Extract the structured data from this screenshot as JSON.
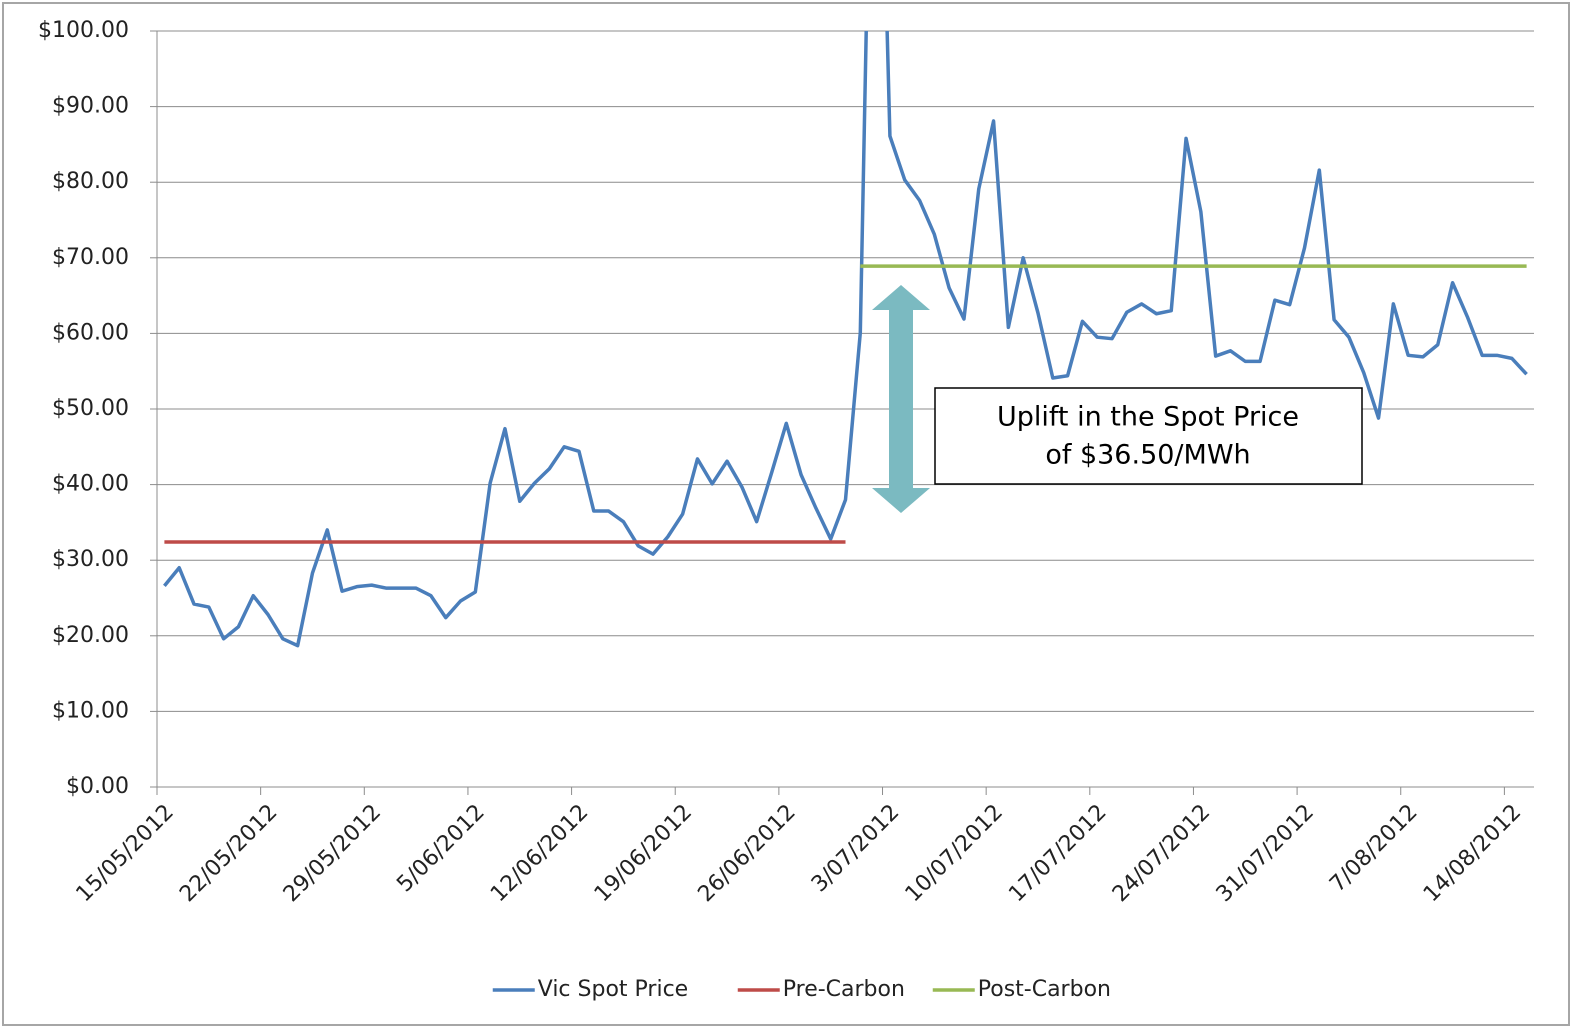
{
  "chart_data": {
    "type": "line",
    "categories": [
      "15/05/2012",
      null,
      null,
      null,
      null,
      null,
      null,
      "22/05/2012",
      null,
      null,
      null,
      null,
      null,
      null,
      "29/05/2012",
      null,
      null,
      null,
      null,
      null,
      null,
      "5/06/2012",
      null,
      null,
      null,
      null,
      null,
      null,
      "12/06/2012",
      null,
      null,
      null,
      null,
      null,
      null,
      "19/06/2012",
      null,
      null,
      null,
      null,
      null,
      null,
      "26/06/2012",
      null,
      null,
      null,
      null,
      null,
      null,
      "3/07/2012",
      null,
      null,
      null,
      null,
      null,
      null,
      "10/07/2012",
      null,
      null,
      null,
      null,
      null,
      null,
      "17/07/2012",
      null,
      null,
      null,
      null,
      null,
      null,
      "24/07/2012",
      null,
      null,
      null,
      null,
      null,
      null,
      "31/07/2012",
      null,
      null,
      null,
      null,
      null,
      null,
      "7/08/2012",
      null,
      null,
      null,
      null,
      null,
      null,
      "14/08/2012",
      null
    ],
    "series": [
      {
        "name": "Vic Spot Price",
        "color": "#4a7ebb",
        "values": [
          26.6,
          29.0,
          24.2,
          23.8,
          19.6,
          21.2,
          25.3,
          22.8,
          19.6,
          18.7,
          28.3,
          34.0,
          25.9,
          26.5,
          26.7,
          26.3,
          26.3,
          26.3,
          25.3,
          22.4,
          24.6,
          25.8,
          40.2,
          47.4,
          37.8,
          40.2,
          42.1,
          45.0,
          44.4,
          36.5,
          36.5,
          35.1,
          31.9,
          30.8,
          33.1,
          36.1,
          43.4,
          40.1,
          43.1,
          39.7,
          35.1,
          41.5,
          48.1,
          41.3,
          36.9,
          32.8,
          38.0,
          60.1,
          160,
          86.1,
          80.3,
          77.6,
          73.1,
          66.0,
          61.9,
          79.1,
          88.1,
          60.8,
          70.0,
          62.7,
          54.1,
          54.4,
          61.6,
          59.5,
          59.3,
          62.8,
          63.9,
          62.6,
          63.0,
          85.8,
          76.1,
          57.0,
          57.7,
          56.3,
          56.3,
          64.4,
          63.8,
          71.3,
          81.6,
          61.8,
          59.5,
          54.8,
          48.8,
          63.9,
          57.1,
          56.9,
          58.5,
          66.7,
          62.2,
          57.1,
          57.1,
          56.7,
          54.6
        ]
      },
      {
        "name": "Pre-Carbon",
        "color": "#be4b48",
        "values": [
          32.4,
          32.4,
          32.4,
          32.4,
          32.4,
          32.4,
          32.4,
          32.4,
          32.4,
          32.4,
          32.4,
          32.4,
          32.4,
          32.4,
          32.4,
          32.4,
          32.4,
          32.4,
          32.4,
          32.4,
          32.4,
          32.4,
          32.4,
          32.4,
          32.4,
          32.4,
          32.4,
          32.4,
          32.4,
          32.4,
          32.4,
          32.4,
          32.4,
          32.4,
          32.4,
          32.4,
          32.4,
          32.4,
          32.4,
          32.4,
          32.4,
          32.4,
          32.4,
          32.4,
          32.4,
          32.4,
          32.4,
          null,
          null,
          null,
          null,
          null,
          null,
          null,
          null,
          null,
          null,
          null,
          null,
          null,
          null,
          null,
          null,
          null,
          null,
          null,
          null,
          null,
          null,
          null,
          null,
          null,
          null,
          null,
          null,
          null,
          null,
          null,
          null,
          null,
          null,
          null,
          null,
          null,
          null,
          null,
          null,
          null,
          null,
          null,
          null,
          null,
          null
        ]
      },
      {
        "name": "Post-Carbon",
        "color": "#98b954",
        "values": [
          null,
          null,
          null,
          null,
          null,
          null,
          null,
          null,
          null,
          null,
          null,
          null,
          null,
          null,
          null,
          null,
          null,
          null,
          null,
          null,
          null,
          null,
          null,
          null,
          null,
          null,
          null,
          null,
          null,
          null,
          null,
          null,
          null,
          null,
          null,
          null,
          null,
          null,
          null,
          null,
          null,
          null,
          null,
          null,
          null,
          null,
          null,
          68.9,
          68.9,
          68.9,
          68.9,
          68.9,
          68.9,
          68.9,
          68.9,
          68.9,
          68.9,
          68.9,
          68.9,
          68.9,
          68.9,
          68.9,
          68.9,
          68.9,
          68.9,
          68.9,
          68.9,
          68.9,
          68.9,
          68.9,
          68.9,
          68.9,
          68.9,
          68.9,
          68.9,
          68.9,
          68.9,
          68.9,
          68.9,
          68.9,
          68.9,
          68.9,
          68.9,
          68.9,
          68.9,
          68.9,
          68.9,
          68.9,
          68.9,
          68.9,
          68.9,
          68.9,
          68.9
        ]
      }
    ],
    "ylim": [
      0,
      100
    ],
    "yticks": [
      {
        "value": 0,
        "label": "$0.00"
      },
      {
        "value": 10,
        "label": "$10.00"
      },
      {
        "value": 20,
        "label": "$20.00"
      },
      {
        "value": 30,
        "label": "$30.00"
      },
      {
        "value": 40,
        "label": "$40.00"
      },
      {
        "value": 50,
        "label": "$50.00"
      },
      {
        "value": 60,
        "label": "$60.00"
      },
      {
        "value": 70,
        "label": "$70.00"
      },
      {
        "value": 80,
        "label": "$80.00"
      },
      {
        "value": 90,
        "label": "$90.00"
      },
      {
        "value": 100,
        "label": "$100.00"
      }
    ],
    "grid": true,
    "legend": "bottom",
    "annotation": [
      "Uplift in the Spot Price",
      "of $36.50/MWh"
    ]
  }
}
